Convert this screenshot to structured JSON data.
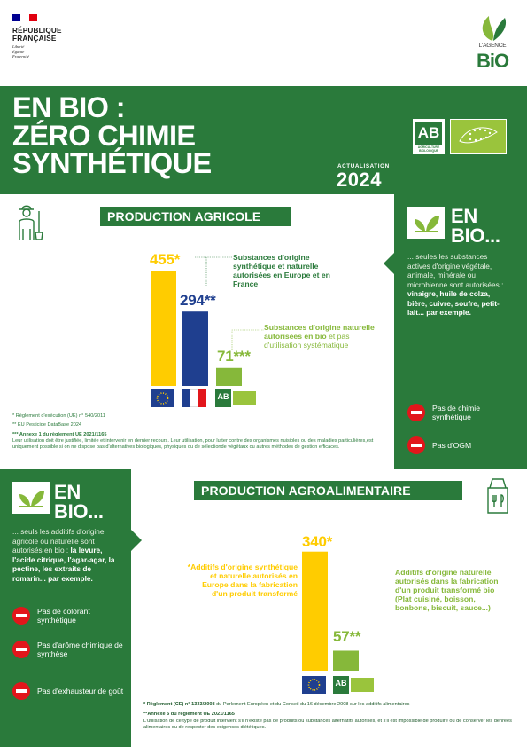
{
  "header": {
    "republic_line1": "RÉPUBLIQUE",
    "republic_line2": "FRANÇAISE",
    "motto1": "Liberté",
    "motto2": "Égalité",
    "motto3": "Fraternité",
    "agence_label": "L'AGENCE",
    "agence_bio": "BiO"
  },
  "hero": {
    "title_line1": "EN BIO :",
    "title_line2": "ZÉRO CHIMIE",
    "title_line3": "SYNTHÉTIQUE",
    "actualisation_label": "ACTUALISATION",
    "year": "2024",
    "ab_mark": "AB",
    "ab_caption1": "AGRICULTURE",
    "ab_caption2": "BIOLOGIQUE"
  },
  "agricole": {
    "heading": "PRODUCTION AGRICOLE",
    "values": [
      "455*",
      "294**",
      "71***"
    ],
    "label1": "Substances d'origine synthétique et naturelle autorisées en Europe et en France",
    "label2_bold": "Substances d'origine naturelle autorisées en bio",
    "label2_rest": "et pas d'utilisation systématique",
    "note1": "* Règlement d'exécution (UE) n° 540/2011",
    "note2": "** EU Pesticide DataBase 2024",
    "note3_bold": "*** Annexe 1 du règlement UE 2021/1165",
    "note3_text": "Leur utilisation doit être justifiée, limitée et intervenir en dernier recours. Leur utilisation, pour lutter contre des organismes nuisibles ou des maladies particulières,est uniquement possible si on ne dispose pas d'alternatives biologiques, physiques ou de sélectionde végétaux ou autres méthodes de gestion efficaces."
  },
  "enbio_right": {
    "heading_line1": "EN",
    "heading_line2": "BIO...",
    "text_intro": "... seules les substances actives d'origine végétale, animale, minérale ou microbienne sont autorisées :",
    "text_bold": "vinaigre, huile de colza, bière, cuivre, soufre, petit-lait... par exemple.",
    "no_items": [
      "Pas de chimie synthétique",
      "Pas d'OGM"
    ]
  },
  "enbio_left": {
    "heading_line1": "EN",
    "heading_line2": "BIO...",
    "text_intro": "... seuls les additifs d'origine agricole ou naturelle sont autorisés en bio :",
    "text_bold": "la levure, l'acide citrique, l'agar-agar, la pectine, les extraits de romarin... par exemple.",
    "no_items": [
      "Pas de colorant synthétique",
      "Pas d'arôme chimique de synthèse",
      "Pas d'exhausteur de goût"
    ]
  },
  "agroalimentaire": {
    "heading": "PRODUCTION AGROALIMENTAIRE",
    "values": [
      "340*",
      "57**"
    ],
    "label1": "*Additifs d'origine synthétique et naturelle autorisés en Europe dans la fabrication d'un produit transformé",
    "label2": "Additifs d'origine naturelle autorisés dans la fabrication d'un produit transformé bio (Plat cuisiné, boisson, bonbons, biscuit, sauce...)",
    "note1_bold": "* Règlement (CE) n° 1333/2008",
    "note1_rest": "du Parlement Européen et du Conseil du 16 décembre 2008 sur les additifs alimentaires",
    "note2_bold": "**Annexe 5 du règlement UE 2021/1165",
    "note2_text": "L'utilisation de ce type de produit intervient s'il n'existe pas de produits ou substances alternatifs autorisés, et s'il est impossible de produire ou de conserver les denrées alimentaires ou de respecter des exigences diététiques."
  },
  "colors": {
    "green": "#2a7a3b",
    "yellow": "#ffcc00",
    "blue": "#1f3f8f",
    "lime": "#86b83a",
    "red": "#e2161b"
  },
  "chart_data": [
    {
      "type": "bar",
      "categories": [
        "Europe",
        "France",
        "Bio"
      ],
      "values": [
        455,
        294,
        71
      ],
      "title": "PRODUCTION AGRICOLE"
    },
    {
      "type": "bar",
      "categories": [
        "Europe",
        "Bio"
      ],
      "values": [
        340,
        57
      ],
      "title": "PRODUCTION AGROALIMENTAIRE"
    }
  ]
}
